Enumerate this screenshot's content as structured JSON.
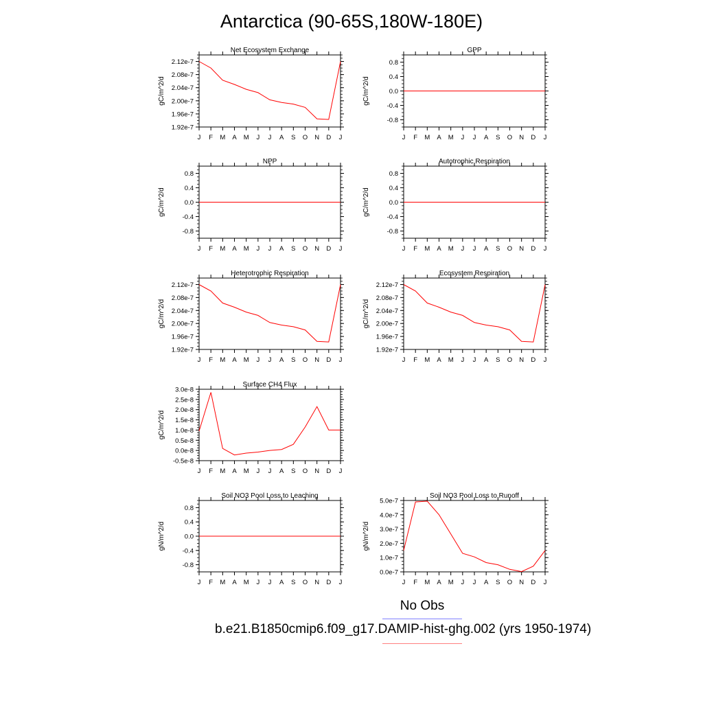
{
  "page": {
    "title": "Antarctica (90-65S,180W-180E)"
  },
  "legend": {
    "obs_label": "No Obs",
    "obs_color": "#7f7fff",
    "case_label": "b.e21.B1850cmip6.f09_g17.DAMIP-hist-ghg.002 (yrs 1950-1974)",
    "case_color": "#ff7f7f"
  },
  "colors": {
    "series": "#ff0000",
    "axis": "#000000"
  },
  "chart_data": [
    {
      "type": "line",
      "title": "Net Ecosystem Exchange",
      "ylabel": "gC/m^2/d",
      "x": [
        "J",
        "F",
        "M",
        "A",
        "M",
        "J",
        "J",
        "A",
        "S",
        "O",
        "N",
        "D",
        "J"
      ],
      "yticks": [
        "2.12e-7",
        "2.08e-7",
        "2.04e-7",
        "2.00e-7",
        "1.96e-7",
        "1.92e-7"
      ],
      "ytick_values": [
        2.12e-07,
        2.08e-07,
        2.04e-07,
        2e-07,
        1.96e-07,
        1.92e-07
      ],
      "ylim": [
        1.92e-07,
        2.14e-07
      ],
      "series": [
        {
          "values": [
            2.12e-07,
            2.1e-07,
            2.063e-07,
            2.05e-07,
            2.035e-07,
            2.025e-07,
            2.003e-07,
            1.995e-07,
            1.99e-07,
            1.98e-07,
            1.945e-07,
            1.943e-07,
            2.12e-07
          ]
        }
      ]
    },
    {
      "type": "line",
      "title": "GPP",
      "ylabel": "gC/m^2/d",
      "x": [
        "J",
        "F",
        "M",
        "A",
        "M",
        "J",
        "J",
        "A",
        "S",
        "O",
        "N",
        "D",
        "J"
      ],
      "yticks": [
        "0.8",
        "0.4",
        "0.0",
        "-0.4",
        "-0.8"
      ],
      "ytick_values": [
        0.8,
        0.4,
        0.0,
        -0.4,
        -0.8
      ],
      "ylim": [
        -1.0,
        1.0
      ],
      "series": [
        {
          "values": [
            0,
            0,
            0,
            0,
            0,
            0,
            0,
            0,
            0,
            0,
            0,
            0,
            0
          ]
        }
      ]
    },
    {
      "type": "line",
      "title": "NPP",
      "ylabel": "gC/m^2/d",
      "x": [
        "J",
        "F",
        "M",
        "A",
        "M",
        "J",
        "J",
        "A",
        "S",
        "O",
        "N",
        "D",
        "J"
      ],
      "yticks": [
        "0.8",
        "0.4",
        "0.0",
        "-0.4",
        "-0.8"
      ],
      "ytick_values": [
        0.8,
        0.4,
        0.0,
        -0.4,
        -0.8
      ],
      "ylim": [
        -1.0,
        1.0
      ],
      "series": [
        {
          "values": [
            0,
            0,
            0,
            0,
            0,
            0,
            0,
            0,
            0,
            0,
            0,
            0,
            0
          ]
        }
      ]
    },
    {
      "type": "line",
      "title": "Autotrophic Respiration",
      "ylabel": "gC/m^2/d",
      "x": [
        "J",
        "F",
        "M",
        "A",
        "M",
        "J",
        "J",
        "A",
        "S",
        "O",
        "N",
        "D",
        "J"
      ],
      "yticks": [
        "0.8",
        "0.4",
        "0.0",
        "-0.4",
        "-0.8"
      ],
      "ytick_values": [
        0.8,
        0.4,
        0.0,
        -0.4,
        -0.8
      ],
      "ylim": [
        -1.0,
        1.0
      ],
      "series": [
        {
          "values": [
            0,
            0,
            0,
            0,
            0,
            0,
            0,
            0,
            0,
            0,
            0,
            0,
            0
          ]
        }
      ]
    },
    {
      "type": "line",
      "title": "Heterotrophic Respiration",
      "ylabel": "gC/m^2/d",
      "x": [
        "J",
        "F",
        "M",
        "A",
        "M",
        "J",
        "J",
        "A",
        "S",
        "O",
        "N",
        "D",
        "J"
      ],
      "yticks": [
        "2.12e-7",
        "2.08e-7",
        "2.04e-7",
        "2.00e-7",
        "1.96e-7",
        "1.92e-7"
      ],
      "ytick_values": [
        2.12e-07,
        2.08e-07,
        2.04e-07,
        2e-07,
        1.96e-07,
        1.92e-07
      ],
      "ylim": [
        1.92e-07,
        2.14e-07
      ],
      "series": [
        {
          "values": [
            2.12e-07,
            2.1e-07,
            2.063e-07,
            2.05e-07,
            2.035e-07,
            2.025e-07,
            2.003e-07,
            1.995e-07,
            1.99e-07,
            1.98e-07,
            1.945e-07,
            1.943e-07,
            2.12e-07
          ]
        }
      ]
    },
    {
      "type": "line",
      "title": "Ecosystem Respiration",
      "ylabel": "gC/m^2/d",
      "x": [
        "J",
        "F",
        "M",
        "A",
        "M",
        "J",
        "J",
        "A",
        "S",
        "O",
        "N",
        "D",
        "J"
      ],
      "yticks": [
        "2.12e-7",
        "2.08e-7",
        "2.04e-7",
        "2.00e-7",
        "1.96e-7",
        "1.92e-7"
      ],
      "ytick_values": [
        2.12e-07,
        2.08e-07,
        2.04e-07,
        2e-07,
        1.96e-07,
        1.92e-07
      ],
      "ylim": [
        1.92e-07,
        2.14e-07
      ],
      "series": [
        {
          "values": [
            2.12e-07,
            2.1e-07,
            2.063e-07,
            2.05e-07,
            2.035e-07,
            2.025e-07,
            2.003e-07,
            1.995e-07,
            1.99e-07,
            1.98e-07,
            1.945e-07,
            1.943e-07,
            2.12e-07
          ]
        }
      ]
    },
    {
      "type": "line",
      "title": "Surface CH4 Flux",
      "ylabel": "gC/m^2/d",
      "x": [
        "J",
        "F",
        "M",
        "A",
        "M",
        "J",
        "J",
        "A",
        "S",
        "O",
        "N",
        "D",
        "J"
      ],
      "yticks": [
        "3.0e-8",
        "2.5e-8",
        "2.0e-8",
        "1.5e-8",
        "1.0e-8",
        "0.5e-8",
        "0.0e-8",
        "-0.5e-8"
      ],
      "ytick_values": [
        3e-08,
        2.5e-08,
        2e-08,
        1.5e-08,
        1e-08,
        5e-09,
        0.0,
        -5e-09
      ],
      "ylim": [
        -5e-09,
        3e-08
      ],
      "series": [
        {
          "values": [
            9.5e-09,
            2.85e-08,
            1e-09,
            -2.2e-09,
            -1.3e-09,
            -8e-10,
            0.0,
            5e-10,
            3e-09,
            1.15e-08,
            2.15e-08,
            1e-08,
            1e-08
          ]
        }
      ]
    },
    {
      "type": "line",
      "title": "Soil NO3 Pool Loss to Leaching",
      "ylabel": "gN/m^2/d",
      "x": [
        "J",
        "F",
        "M",
        "A",
        "M",
        "J",
        "J",
        "A",
        "S",
        "O",
        "N",
        "D",
        "J"
      ],
      "yticks": [
        "0.8",
        "0.4",
        "0.0",
        "-0.4",
        "-0.8"
      ],
      "ytick_values": [
        0.8,
        0.4,
        0.0,
        -0.4,
        -0.8
      ],
      "ylim": [
        -1.0,
        1.0
      ],
      "series": [
        {
          "values": [
            0,
            0,
            0,
            0,
            0,
            0,
            0,
            0,
            0,
            0,
            0,
            0,
            0
          ]
        }
      ]
    },
    {
      "type": "line",
      "title": "Soil NO3 Pool Loss to Runoff",
      "ylabel": "gN/m^2/d",
      "x": [
        "J",
        "F",
        "M",
        "A",
        "M",
        "J",
        "J",
        "A",
        "S",
        "O",
        "N",
        "D",
        "J"
      ],
      "yticks": [
        "5.0e-7",
        "4.0e-7",
        "3.0e-7",
        "2.0e-7",
        "1.0e-7",
        "0.0e-7"
      ],
      "ytick_values": [
        5e-07,
        4e-07,
        3e-07,
        2e-07,
        1e-07,
        0.0
      ],
      "ylim": [
        0.0,
        5e-07
      ],
      "series": [
        {
          "values": [
            1.5e-07,
            4.9e-07,
            4.95e-07,
            4e-07,
            2.65e-07,
            1.3e-07,
            1.05e-07,
            6.5e-08,
            5e-08,
            1.8e-08,
            2e-09,
            4e-08,
            1.5e-07
          ]
        }
      ]
    }
  ]
}
